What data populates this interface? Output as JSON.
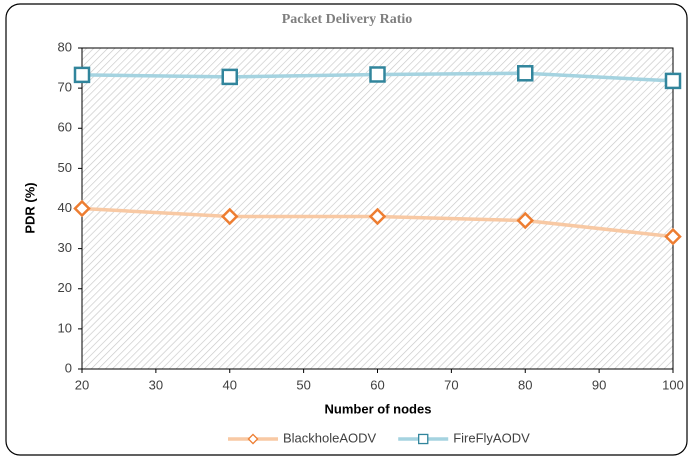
{
  "chart_data": {
    "type": "line",
    "title": "Packet Delivery Ratio",
    "x_label": "Number of nodes",
    "y_label": "PDR (%)",
    "x": [
      20,
      40,
      60,
      80,
      100
    ],
    "series": [
      {
        "name": "BlackholeAODV",
        "color": "#f8c9a4",
        "marker_color": "#ed7d31",
        "marker": "diamond",
        "values": [
          40,
          38,
          38,
          37,
          33
        ]
      },
      {
        "name": "FireFlyAODV",
        "color": "#a5d3e0",
        "marker_color": "#31859c",
        "marker": "square",
        "values": [
          73.3,
          72.8,
          73.4,
          73.7,
          71.8
        ]
      }
    ],
    "xlim": [
      20,
      100
    ],
    "xticks": [
      20,
      30,
      40,
      50,
      60,
      70,
      80,
      90,
      100
    ],
    "ylim": [
      0,
      80
    ],
    "yticks": [
      0,
      10,
      20,
      30,
      40,
      50,
      60,
      70,
      80
    ],
    "legend": "bottom"
  }
}
